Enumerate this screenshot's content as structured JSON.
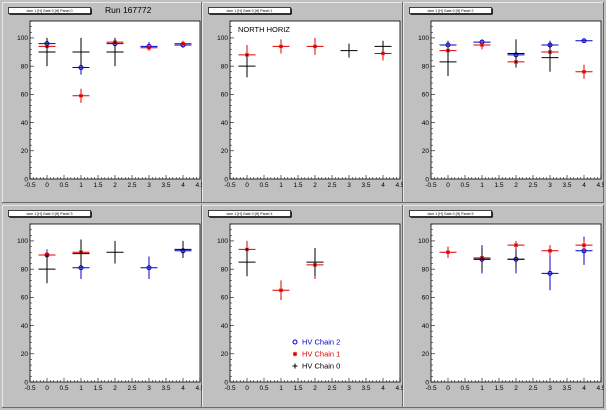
{
  "colors": {
    "background": "#c0c0c0",
    "frame_fill": "#ffffff",
    "chain2": "#0000cc",
    "chain1": "#dd0000",
    "chain0": "#000000"
  },
  "legend": {
    "entries": [
      {
        "label": "HV Chain 2",
        "color": "#0000cc",
        "marker": "open-circle"
      },
      {
        "label": "HV Chain 1",
        "color": "#dd0000",
        "marker": "star"
      },
      {
        "label": "HV Chain 0",
        "color": "#000000",
        "marker": "plus"
      }
    ]
  },
  "chart_data": [
    {
      "type": "scatter",
      "title": "dcm 1 [H] Gate 0 [H] Panel 0",
      "annotation": "Run 167772",
      "xlim": [
        -0.5,
        4.5
      ],
      "ylim": [
        0,
        112
      ],
      "xticks": [
        -0.5,
        0,
        0.5,
        1,
        1.5,
        2,
        2.5,
        3,
        3.5,
        4,
        4.5
      ],
      "yticks": [
        0,
        20,
        40,
        60,
        80,
        100
      ],
      "series": [
        {
          "name": "HV Chain 2",
          "points": [
            {
              "x": 0,
              "y": 96,
              "yerr": 2
            },
            {
              "x": 1,
              "y": 79,
              "yerr": 5
            },
            {
              "x": 2,
              "y": 96,
              "yerr": 2
            },
            {
              "x": 3,
              "y": 94,
              "yerr": 3
            },
            {
              "x": 4,
              "y": 95,
              "yerr": 2
            }
          ]
        },
        {
          "name": "HV Chain 1",
          "points": [
            {
              "x": 0,
              "y": 94,
              "yerr": 3
            },
            {
              "x": 1,
              "y": 59,
              "yerr": 5
            },
            {
              "x": 2,
              "y": 97,
              "yerr": 1
            },
            {
              "x": 3,
              "y": 93,
              "yerr": 2
            },
            {
              "x": 4,
              "y": 96,
              "yerr": 2
            }
          ]
        },
        {
          "name": "HV Chain 0",
          "points": [
            {
              "x": 0,
              "y": 90,
              "yerr": 10
            },
            {
              "x": 1,
              "y": 90,
              "yerr": 10
            },
            {
              "x": 2,
              "y": 90,
              "yerr": 10
            }
          ]
        }
      ]
    },
    {
      "type": "scatter",
      "title": "dcm 1 [H] Gate 0 [H] Panel 1",
      "annotation": "NORTH HORIZ",
      "xlim": [
        -0.5,
        4.5
      ],
      "ylim": [
        0,
        112
      ],
      "xticks": [
        -0.5,
        0,
        0.5,
        1,
        1.5,
        2,
        2.5,
        3,
        3.5,
        4,
        4.5
      ],
      "yticks": [
        0,
        20,
        40,
        60,
        80,
        100
      ],
      "series": [
        {
          "name": "HV Chain 1",
          "points": [
            {
              "x": 0,
              "y": 88,
              "yerr": 7
            },
            {
              "x": 1,
              "y": 94,
              "yerr": 5
            },
            {
              "x": 2,
              "y": 94,
              "yerr": 6
            },
            {
              "x": 4,
              "y": 89,
              "yerr": 5
            }
          ]
        },
        {
          "name": "HV Chain 0",
          "points": [
            {
              "x": 0,
              "y": 80,
              "yerr": 8
            },
            {
              "x": 3,
              "y": 91,
              "yerr": 5
            },
            {
              "x": 4,
              "y": 94,
              "yerr": 4
            }
          ]
        }
      ]
    },
    {
      "type": "scatter",
      "title": "dcm 1 [H] Gate 0 [H] Panel 2",
      "xlim": [
        -0.5,
        4.5
      ],
      "ylim": [
        0,
        112
      ],
      "xticks": [
        -0.5,
        0,
        0.5,
        1,
        1.5,
        2,
        2.5,
        3,
        3.5,
        4,
        4.5
      ],
      "yticks": [
        0,
        20,
        40,
        60,
        80,
        100
      ],
      "series": [
        {
          "name": "HV Chain 2",
          "points": [
            {
              "x": 0,
              "y": 95,
              "yerr": 3
            },
            {
              "x": 1,
              "y": 97,
              "yerr": 2
            },
            {
              "x": 2,
              "y": 88,
              "yerr": 4
            },
            {
              "x": 3,
              "y": 95,
              "yerr": 3
            },
            {
              "x": 4,
              "y": 98,
              "yerr": 1
            }
          ]
        },
        {
          "name": "HV Chain 1",
          "points": [
            {
              "x": 0,
              "y": 91,
              "yerr": 3
            },
            {
              "x": 1,
              "y": 95,
              "yerr": 3
            },
            {
              "x": 2,
              "y": 83,
              "yerr": 4
            },
            {
              "x": 3,
              "y": 90,
              "yerr": 4
            },
            {
              "x": 4,
              "y": 76,
              "yerr": 5
            }
          ]
        },
        {
          "name": "HV Chain 0",
          "points": [
            {
              "x": 0,
              "y": 83,
              "yerr": 10
            },
            {
              "x": 2,
              "y": 89,
              "yerr": 10
            },
            {
              "x": 3,
              "y": 86,
              "yerr": 10
            }
          ]
        }
      ]
    },
    {
      "type": "scatter",
      "title": "dcm 1 [H] Gate 0 [H] Panel 3",
      "xlim": [
        -0.5,
        4.5
      ],
      "ylim": [
        0,
        112
      ],
      "xticks": [
        -0.5,
        0,
        0.5,
        1,
        1.5,
        2,
        2.5,
        3,
        3.5,
        4,
        4.5
      ],
      "yticks": [
        0,
        20,
        40,
        60,
        80,
        100
      ],
      "series": [
        {
          "name": "HV Chain 2",
          "points": [
            {
              "x": 0,
              "y": 90,
              "yerr": 4
            },
            {
              "x": 1,
              "y": 81,
              "yerr": 8
            },
            {
              "x": 3,
              "y": 81,
              "yerr": 8
            },
            {
              "x": 4,
              "y": 93,
              "yerr": 4
            }
          ]
        },
        {
          "name": "HV Chain 1",
          "points": [
            {
              "x": 0,
              "y": 90,
              "yerr": 3
            },
            {
              "x": 1,
              "y": 92,
              "yerr": 3
            }
          ]
        },
        {
          "name": "HV Chain 0",
          "points": [
            {
              "x": 0,
              "y": 80,
              "yerr": 10
            },
            {
              "x": 1,
              "y": 91,
              "yerr": 10
            },
            {
              "x": 2,
              "y": 92,
              "yerr": 8
            },
            {
              "x": 4,
              "y": 94,
              "yerr": 6
            }
          ]
        }
      ]
    },
    {
      "type": "scatter",
      "title": "dcm 1 [H] Gate 0 [H] Panel 4",
      "xlim": [
        -0.5,
        4.5
      ],
      "ylim": [
        0,
        112
      ],
      "xticks": [
        -0.5,
        0,
        0.5,
        1,
        1.5,
        2,
        2.5,
        3,
        3.5,
        4,
        4.5
      ],
      "yticks": [
        0,
        20,
        40,
        60,
        80,
        100
      ],
      "series": [
        {
          "name": "HV Chain 1",
          "points": [
            {
              "x": 0,
              "y": 94,
              "yerr": 6
            },
            {
              "x": 1,
              "y": 65,
              "yerr": 7
            },
            {
              "x": 2,
              "y": 83,
              "yerr": 10
            }
          ]
        },
        {
          "name": "HV Chain 0",
          "points": [
            {
              "x": 0,
              "y": 85,
              "yerr": 10
            },
            {
              "x": 2,
              "y": 85,
              "yerr": 10
            }
          ]
        }
      ]
    },
    {
      "type": "scatter",
      "title": "dcm 1 [H] Gate 0 [H] Panel 5",
      "xlim": [
        -0.5,
        4.5
      ],
      "ylim": [
        0,
        112
      ],
      "xticks": [
        -0.5,
        0,
        0.5,
        1,
        1.5,
        2,
        2.5,
        3,
        3.5,
        4,
        4.5
      ],
      "yticks": [
        0,
        20,
        40,
        60,
        80,
        100
      ],
      "series": [
        {
          "name": "HV Chain 2",
          "points": [
            {
              "x": 1,
              "y": 87,
              "yerr": 10
            },
            {
              "x": 2,
              "y": 87,
              "yerr": 10
            },
            {
              "x": 3,
              "y": 77,
              "yerr": 12
            },
            {
              "x": 4,
              "y": 93,
              "yerr": 10
            }
          ]
        },
        {
          "name": "HV Chain 1",
          "points": [
            {
              "x": 0,
              "y": 92,
              "yerr": 4
            },
            {
              "x": 1,
              "y": 88,
              "yerr": 3
            },
            {
              "x": 2,
              "y": 97,
              "yerr": 3
            },
            {
              "x": 3,
              "y": 93,
              "yerr": 4
            },
            {
              "x": 4,
              "y": 97,
              "yerr": 4
            }
          ]
        },
        {
          "name": "HV Chain 0",
          "points": [
            {
              "x": 1,
              "y": 87,
              "yerr": 8
            },
            {
              "x": 2,
              "y": 87,
              "yerr": 6
            }
          ]
        }
      ]
    }
  ]
}
